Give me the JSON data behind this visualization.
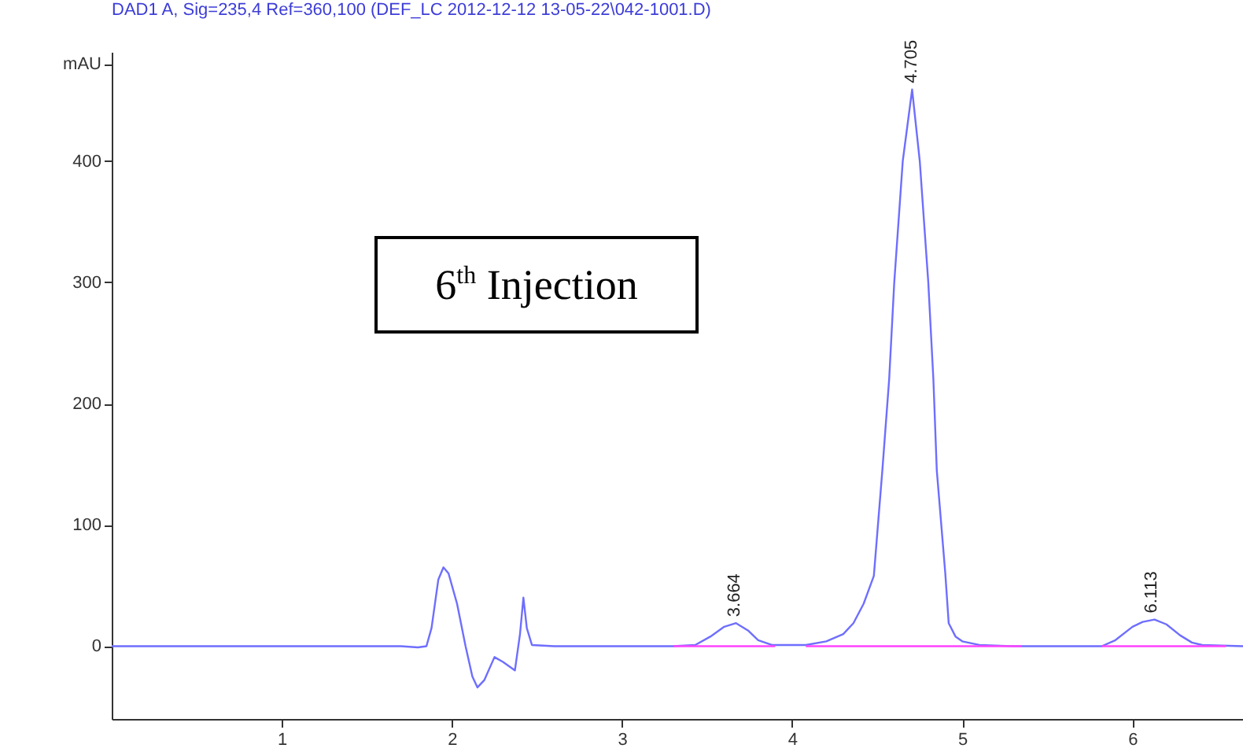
{
  "chart_data": {
    "type": "line",
    "title": "DAD1 A, Sig=235,4 Ref=360,100 (DEF_LC 2012-12-12 13-05-22\\042-1001.D)",
    "xlim": [
      0,
      6.65
    ],
    "xticks": [
      1,
      2,
      3,
      4,
      5,
      6
    ],
    "ylim": [
      -60,
      490
    ],
    "yticks": [
      0,
      100,
      200,
      300,
      400,
      {
        "value": 480,
        "label": "mAU"
      }
    ],
    "grid": false,
    "legend": false,
    "series": [
      {
        "color": "#6e6eff",
        "x": [
          0,
          1.7,
          1.8,
          1.85,
          1.88,
          1.92,
          1.95,
          1.98,
          2.03,
          2.08,
          2.12,
          2.15,
          2.19,
          2.25,
          2.3,
          2.37,
          2.4,
          2.42,
          2.44,
          2.47,
          2.6,
          3.3,
          3.43,
          3.52,
          3.6,
          3.67,
          3.74,
          3.8,
          3.88,
          4.08,
          4.2,
          4.3,
          4.36,
          4.42,
          4.48,
          4.53,
          4.57,
          4.6,
          4.65,
          4.705,
          4.75,
          4.8,
          4.83,
          4.85,
          4.9,
          4.92,
          4.96,
          5.0,
          5.1,
          5.3,
          5.82,
          5.9,
          6.0,
          6.06,
          6.13,
          6.2,
          6.28,
          6.35,
          6.41,
          6.65
        ],
        "values": [
          0,
          0,
          -1,
          0,
          15,
          55,
          65,
          60,
          35,
          0,
          -25,
          -34,
          -28,
          -9,
          -13,
          -20,
          10,
          40,
          15,
          1,
          0,
          0,
          1,
          8,
          16,
          19,
          13,
          5,
          1,
          1,
          4,
          10,
          19,
          35,
          58,
          145,
          220,
          300,
          400,
          459,
          400,
          300,
          220,
          145,
          60,
          19,
          8,
          4,
          1,
          0,
          0,
          5,
          16,
          20,
          22,
          18,
          9,
          3,
          1,
          0
        ]
      },
      {
        "color": "#ff44ff",
        "x": [
          3.3,
          3.9
        ],
        "values": [
          0,
          0
        ]
      },
      {
        "color": "#ff44ff",
        "x": [
          4.08,
          5.35
        ],
        "values": [
          0,
          0
        ]
      },
      {
        "color": "#ff44ff",
        "x": [
          5.82,
          6.55
        ],
        "values": [
          0,
          0
        ]
      }
    ],
    "annotations": [
      {
        "text": "3.664",
        "x": 3.664,
        "y": 19
      },
      {
        "text": "4.705",
        "x": 4.705,
        "y": 459
      },
      {
        "text": "6.113",
        "x": 6.113,
        "y": 22
      },
      "6$^{th}$ Injection"
    ]
  }
}
